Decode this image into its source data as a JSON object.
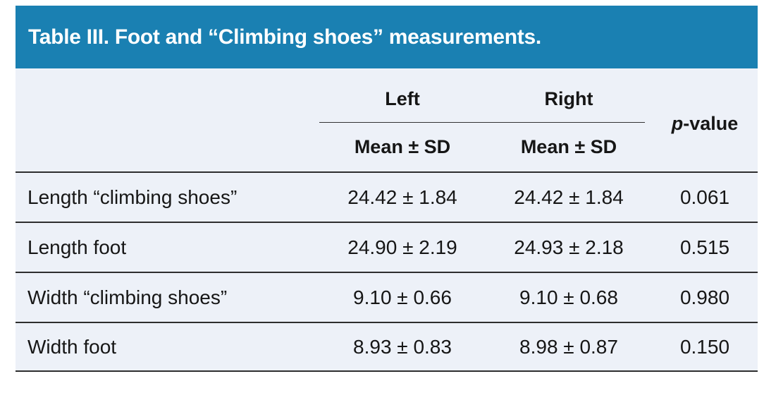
{
  "table": {
    "title": "Table III. Foot and “Climbing shoes” measurements.",
    "columns": {
      "left_label": "Left",
      "right_label": "Right",
      "sub_left": "Mean ± SD",
      "sub_right": "Mean ± SD",
      "p_italic": "p",
      "p_rest": "-value"
    },
    "rows": [
      {
        "label": "Length “climbing shoes”",
        "left": "24.42 ± 1.84",
        "right": "24.42 ± 1.84",
        "p": "0.061"
      },
      {
        "label": "Length foot",
        "left": "24.90 ± 2.19",
        "right": "24.93 ± 2.18",
        "p": "0.515"
      },
      {
        "label": "Width “climbing shoes”",
        "left": "9.10 ± 0.66",
        "right": "9.10 ± 0.68",
        "p": "0.980"
      },
      {
        "label": "Width foot",
        "left": "8.93 ± 0.83",
        "right": "8.98 ± 0.87",
        "p": "0.150"
      }
    ],
    "colors": {
      "header_bg": "#1a80b2",
      "body_bg": "#edf1f8",
      "rule": "#2e2e2e",
      "title_text": "#ffffff",
      "text": "#161616"
    }
  },
  "chart_data": {
    "type": "table",
    "title": "Table III. Foot and “Climbing shoes” measurements.",
    "column_headers": [
      "",
      "Left Mean ± SD",
      "Right Mean ± SD",
      "p-value"
    ],
    "rows": [
      [
        "Length “climbing shoes”",
        "24.42 ± 1.84",
        "24.42 ± 1.84",
        "0.061"
      ],
      [
        "Length foot",
        "24.90 ± 2.19",
        "24.93 ± 2.18",
        "0.515"
      ],
      [
        "Width “climbing shoes”",
        "9.10 ± 0.66",
        "9.10 ± 0.68",
        "0.980"
      ],
      [
        "Width foot",
        "8.93 ± 0.83",
        "8.98 ± 0.87",
        "0.150"
      ]
    ]
  }
}
